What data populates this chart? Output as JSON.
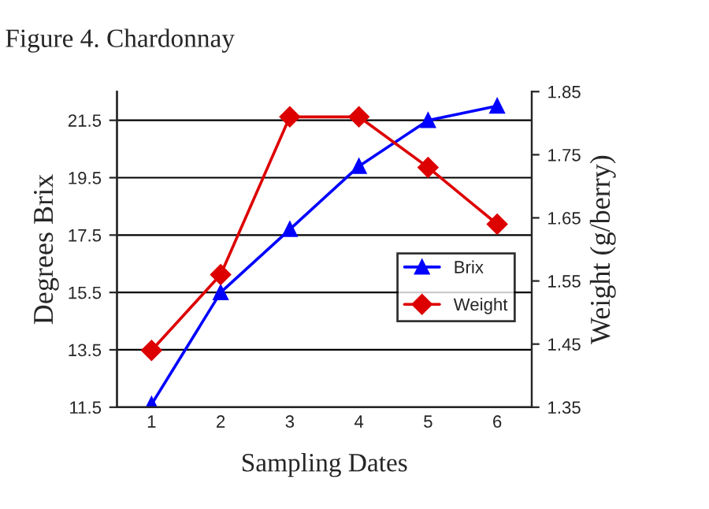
{
  "chart_data": {
    "type": "line",
    "title": "Figure 4. Chardonnay",
    "xlabel": "Sampling Dates",
    "ylabel": "Degrees Brix",
    "y2label": "Weight (g/berry)",
    "categories": [
      "1",
      "2",
      "3",
      "4",
      "5",
      "6"
    ],
    "series": [
      {
        "name": "Brix",
        "color": "#0000ff",
        "marker": "triangle",
        "values": [
          11.6,
          15.5,
          17.7,
          19.9,
          21.5,
          22.0
        ]
      },
      {
        "name": "Weight",
        "color": "#dd0000",
        "marker": "diamond",
        "axis": "y2",
        "values": [
          1.44,
          1.56,
          1.81,
          1.81,
          1.73,
          1.64
        ]
      }
    ],
    "ylim": [
      11.5,
      22.5
    ],
    "yticks": [
      11.5,
      13.5,
      15.5,
      17.5,
      19.5,
      21.5
    ],
    "y2lim": [
      1.35,
      1.85
    ],
    "y2ticks": [
      1.35,
      1.45,
      1.55,
      1.65,
      1.75,
      1.85
    ],
    "grid": "y",
    "legend": "center right",
    "line_style": "solid"
  }
}
